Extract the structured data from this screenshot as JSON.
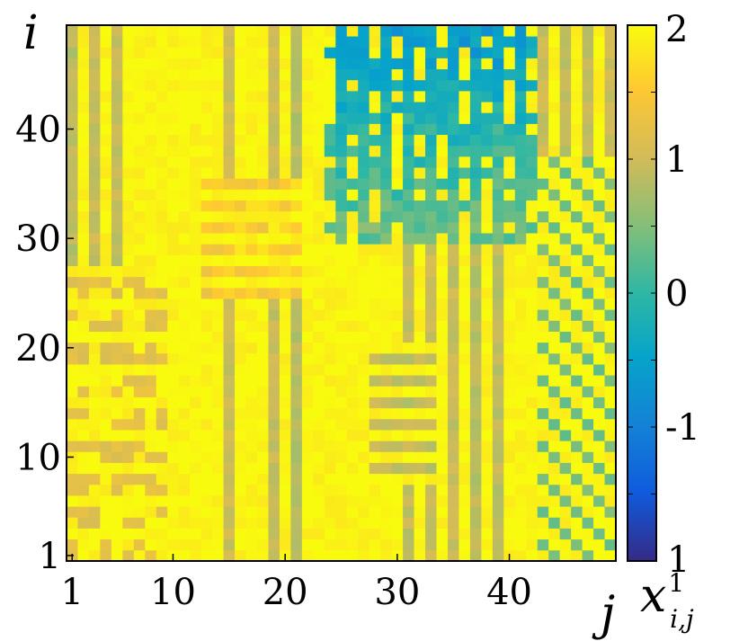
{
  "chart_data": {
    "type": "heatmap",
    "title": "",
    "xlabel": "j",
    "ylabel": "i",
    "x_range": [
      1,
      49
    ],
    "y_range": [
      1,
      49
    ],
    "x_ticks": [
      "1",
      "10",
      "20",
      "30",
      "40"
    ],
    "x_tick_values": [
      1,
      10,
      20,
      30,
      40
    ],
    "y_ticks": [
      "1",
      "10",
      "20",
      "30",
      "40"
    ],
    "y_tick_values": [
      1,
      10,
      20,
      30,
      40
    ],
    "colorbar": {
      "label_base": "x",
      "label_sup": "1",
      "label_sub": "i,j",
      "range": [
        -2,
        2
      ],
      "ticks": [
        "-1",
        "0",
        "1",
        "2"
      ],
      "tick_values": [
        -1,
        0,
        1,
        2
      ],
      "bottom_label": "1",
      "colormap": "parula"
    },
    "grid": false,
    "description_values": "Striped pattern of values mostly between 0.3 and 2; yellow vertical stripes alternating with greener stripes; blue low-value region top-center (j 24-42, i 30-49)"
  },
  "colors": {
    "parula_low": "#352a87",
    "parula_mid": "#22b1b4",
    "parula_high": "#f9fb0e"
  }
}
